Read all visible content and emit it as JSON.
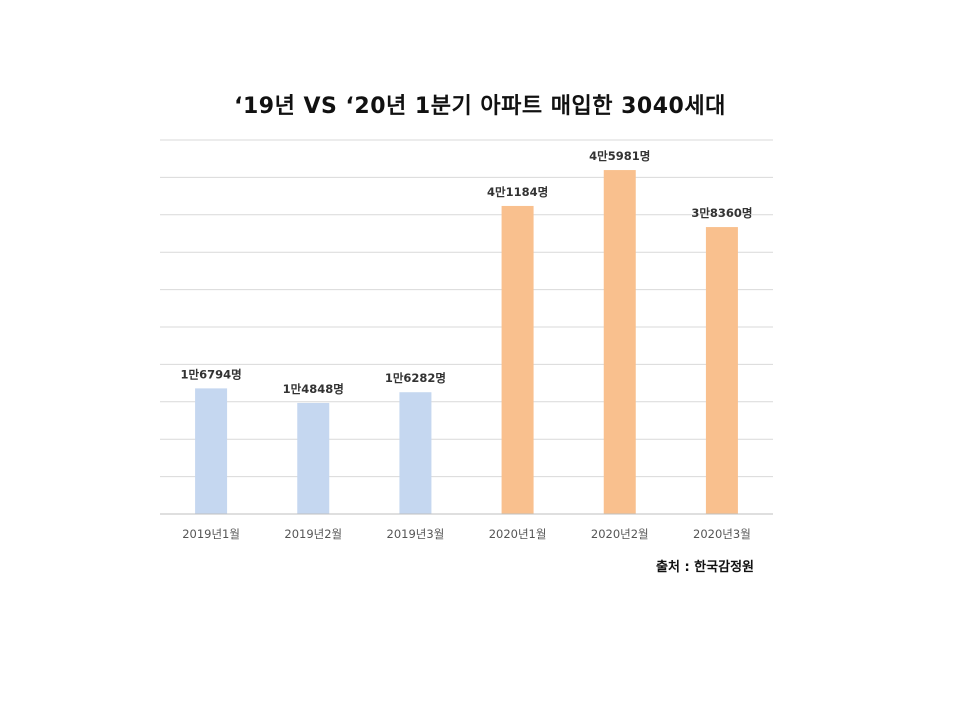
{
  "chart_data": {
    "type": "bar",
    "title": "‘19년 VS ‘20년 1분기 아파트 매입한 3040세대",
    "categories": [
      "2019년1월",
      "2019년2월",
      "2019년3월",
      "2020년1월",
      "2020년2월",
      "2020년3월"
    ],
    "values": [
      16794,
      14848,
      16282,
      41184,
      45981,
      38360
    ],
    "data_labels": [
      "1만6794명",
      "1만4848명",
      "1만6282명",
      "4만1184명",
      "4만5981명",
      "3만8360명"
    ],
    "bar_colors": [
      "#c5d7f0",
      "#c5d7f0",
      "#c5d7f0",
      "#f9c08e",
      "#f9c08e",
      "#f9c08e"
    ],
    "ylim": [
      0,
      50000
    ],
    "grid": true,
    "xlabel": "",
    "ylabel": ""
  },
  "source_text": "출처 : 한국감정원"
}
